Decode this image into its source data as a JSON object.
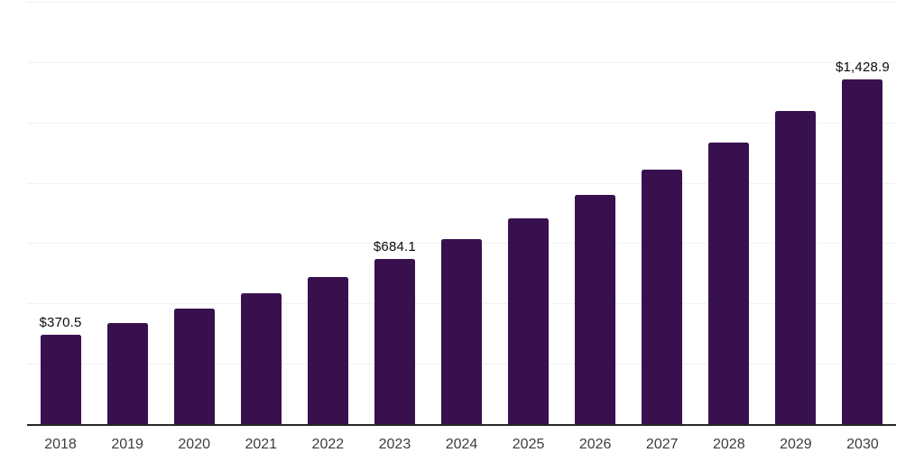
{
  "chart_data": {
    "type": "bar",
    "title": "",
    "xlabel": "",
    "ylabel": "",
    "categories": [
      "2018",
      "2019",
      "2020",
      "2021",
      "2022",
      "2023",
      "2024",
      "2025",
      "2026",
      "2027",
      "2028",
      "2029",
      "2030"
    ],
    "values": [
      370.5,
      419.0,
      478.5,
      542.0,
      608.0,
      684.1,
      765.0,
      853.0,
      949.0,
      1053.0,
      1167.0,
      1299.0,
      1428.9
    ],
    "point_labels": {
      "2018": "$370.5",
      "2023": "$684.1",
      "2030": "$1,428.9"
    },
    "ylim": [
      0,
      1750
    ],
    "grid_step": 250,
    "grid": "horizontal",
    "legend": "none",
    "y_tick_labels_visible": false
  },
  "colors": {
    "bar": "#38104E",
    "axis": "#262626",
    "gridline": "#f1f1f4",
    "point_label": "#0c0c0c",
    "tick_label": "#3d3d3d",
    "background": "#ffffff"
  }
}
